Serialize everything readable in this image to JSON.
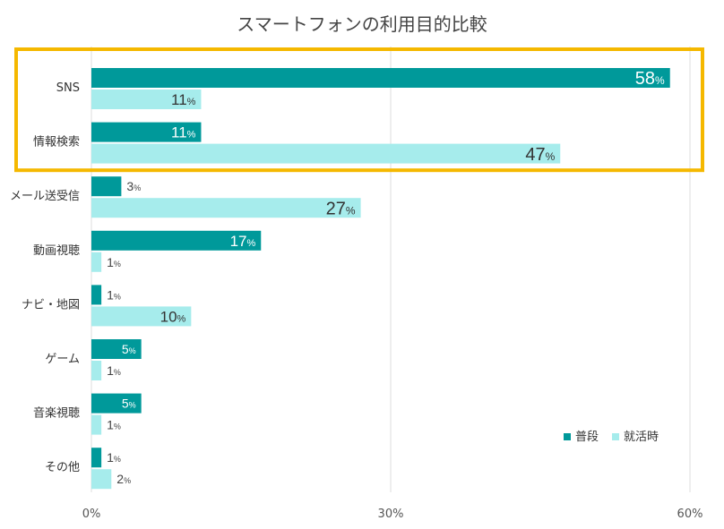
{
  "chart_data": {
    "type": "bar",
    "orientation": "horizontal",
    "title": "スマートフォンの利用目的比較",
    "categories": [
      "SNS",
      "情報検索",
      "メール送受信",
      "動画視聴",
      "ナビ・地図",
      "ゲーム",
      "音楽視聴",
      "その他"
    ],
    "series": [
      {
        "name": "普段",
        "values": [
          58,
          11,
          3,
          17,
          1,
          5,
          5,
          1
        ],
        "color": "#00999a"
      },
      {
        "name": "就活時",
        "values": [
          11,
          47,
          27,
          1,
          10,
          1,
          1,
          2
        ],
        "color": "#a6ecec"
      }
    ],
    "value_suffix": "%",
    "xlim": [
      0,
      60
    ],
    "xticks": [
      "0%",
      "30%",
      "60%"
    ],
    "grid": true,
    "legend_position": "bottom-right",
    "highlight": {
      "categories": [
        "SNS",
        "情報検索"
      ],
      "color": "#f5b800"
    }
  }
}
